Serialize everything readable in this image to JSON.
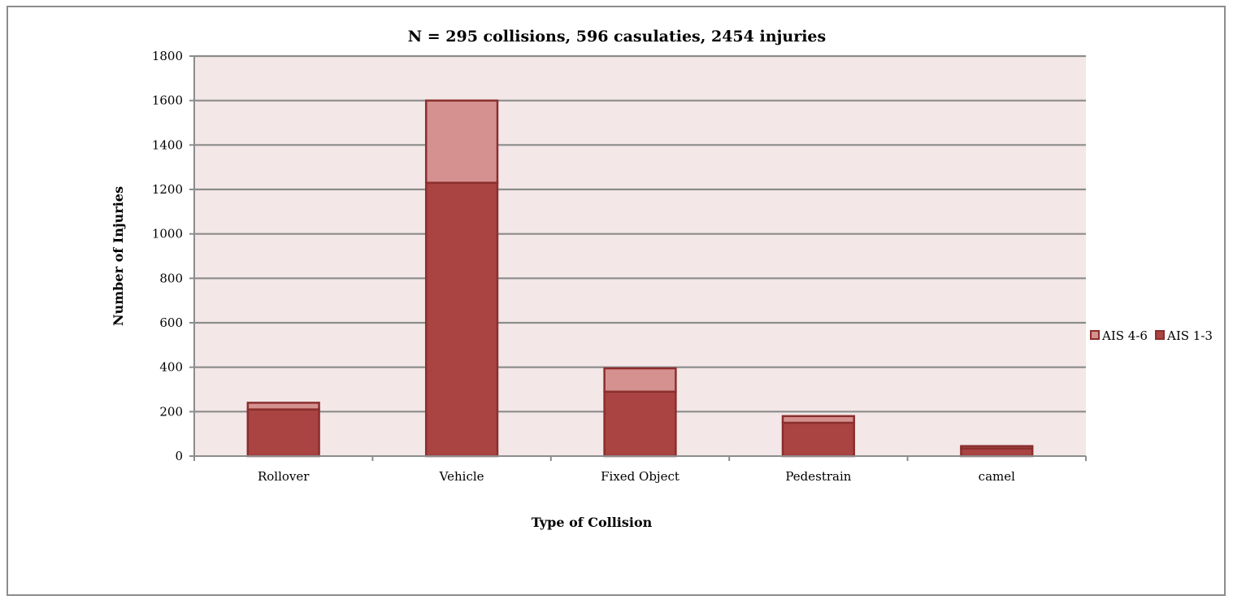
{
  "chart_data": {
    "type": "bar",
    "stacked": true,
    "title": "N = 295 collisions, 596 casulaties, 2454 injuries",
    "xlabel": "Type of Collision",
    "ylabel": "Number of Injuries",
    "categories": [
      "Rollover",
      "Vehicle",
      "Fixed Object",
      "Pedestrain",
      "camel"
    ],
    "series": [
      {
        "name": "AIS 1-3",
        "values": [
          210,
          1230,
          290,
          150,
          35
        ],
        "color": "#a94442"
      },
      {
        "name": "AIS 4-6",
        "values": [
          30,
          370,
          105,
          30,
          10
        ],
        "color": "#d4918f"
      }
    ],
    "ylim": [
      0,
      1800
    ],
    "yticks": [
      0,
      200,
      400,
      600,
      800,
      1000,
      1200,
      1400,
      1600,
      1800
    ],
    "grid": true,
    "legend_position": "right",
    "legend_order": [
      "AIS 4-6",
      "AIS 1-3"
    ],
    "colors": {
      "plot_background": "#f3e7e7",
      "gridline": "#8c8c8c",
      "bar_edge": "#8b2e2e"
    }
  }
}
